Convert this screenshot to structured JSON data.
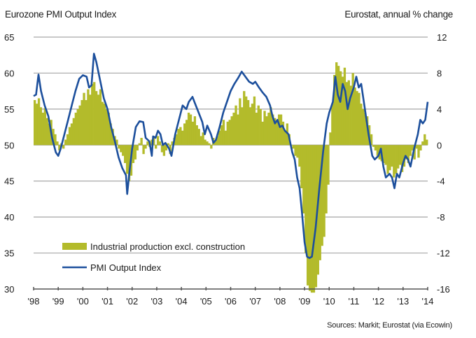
{
  "chart_data": {
    "type": "bar+line",
    "title_left": "Eurozone PMI Output Index",
    "title_right": "Eurostat, annual % change",
    "source": "Sources: Markit; Eurostat (via Ecowin)",
    "x_tick_labels": [
      "'98",
      "'99",
      "'00",
      "'01",
      "'02",
      "'03",
      "'04",
      "'05",
      "'06",
      "'07",
      "'08",
      "'09",
      "'10",
      "'11",
      "'12",
      "'13",
      "'14"
    ],
    "x_range": [
      1998,
      2014
    ],
    "left_axis": {
      "label": "Eurozone PMI Output Index",
      "ylim": [
        30,
        65
      ],
      "ticks": [
        65,
        60,
        55,
        50,
        45,
        40,
        35,
        30
      ]
    },
    "right_axis": {
      "label": "Eurostat, annual % change",
      "ylim": [
        -16,
        12
      ],
      "ticks": [
        12,
        8,
        4,
        0,
        -4,
        -8,
        -12,
        -16
      ]
    },
    "grid": true,
    "legend": {
      "placement": "bottom-left",
      "entries": [
        "Industrial production excl. construction",
        "PMI Output Index"
      ]
    },
    "colors": {
      "bars": "#b3bb2b",
      "line": "#1c4f9c",
      "grid": "#a6a6a6"
    },
    "series": [
      {
        "name": "Industrial production excl. construction",
        "axis": "right",
        "kind": "bar",
        "x": [
          1998.0,
          1998.083,
          1998.167,
          1998.25,
          1998.333,
          1998.417,
          1998.5,
          1998.583,
          1998.667,
          1998.75,
          1998.833,
          1998.917,
          1999.0,
          1999.083,
          1999.167,
          1999.25,
          1999.333,
          1999.417,
          1999.5,
          1999.583,
          1999.667,
          1999.75,
          1999.833,
          1999.917,
          2000.0,
          2000.083,
          2000.167,
          2000.25,
          2000.333,
          2000.417,
          2000.5,
          2000.583,
          2000.667,
          2000.75,
          2000.833,
          2000.917,
          2001.0,
          2001.083,
          2001.167,
          2001.25,
          2001.333,
          2001.417,
          2001.5,
          2001.583,
          2001.667,
          2001.75,
          2001.833,
          2001.917,
          2002.0,
          2002.083,
          2002.167,
          2002.25,
          2002.333,
          2002.417,
          2002.5,
          2002.583,
          2002.667,
          2002.75,
          2002.833,
          2002.917,
          2003.0,
          2003.083,
          2003.167,
          2003.25,
          2003.333,
          2003.417,
          2003.5,
          2003.583,
          2003.667,
          2003.75,
          2003.833,
          2003.917,
          2004.0,
          2004.083,
          2004.167,
          2004.25,
          2004.333,
          2004.417,
          2004.5,
          2004.583,
          2004.667,
          2004.75,
          2004.833,
          2004.917,
          2005.0,
          2005.083,
          2005.167,
          2005.25,
          2005.333,
          2005.417,
          2005.5,
          2005.583,
          2005.667,
          2005.75,
          2005.833,
          2005.917,
          2006.0,
          2006.083,
          2006.167,
          2006.25,
          2006.333,
          2006.417,
          2006.5,
          2006.583,
          2006.667,
          2006.75,
          2006.833,
          2006.917,
          2007.0,
          2007.083,
          2007.167,
          2007.25,
          2007.333,
          2007.417,
          2007.5,
          2007.583,
          2007.667,
          2007.75,
          2007.833,
          2007.917,
          2008.0,
          2008.083,
          2008.167,
          2008.25,
          2008.333,
          2008.417,
          2008.5,
          2008.583,
          2008.667,
          2008.75,
          2008.833,
          2008.917,
          2009.0,
          2009.083,
          2009.167,
          2009.25,
          2009.333,
          2009.417,
          2009.5,
          2009.583,
          2009.667,
          2009.75,
          2009.833,
          2009.917,
          2010.0,
          2010.083,
          2010.167,
          2010.25,
          2010.333,
          2010.417,
          2010.5,
          2010.583,
          2010.667,
          2010.75,
          2010.833,
          2010.917,
          2011.0,
          2011.083,
          2011.167,
          2011.25,
          2011.333,
          2011.417,
          2011.5,
          2011.583,
          2011.667,
          2011.75,
          2011.833,
          2011.917,
          2012.0,
          2012.083,
          2012.167,
          2012.25,
          2012.333,
          2012.417,
          2012.5,
          2012.583,
          2012.667,
          2012.75,
          2012.833,
          2012.917,
          2013.0,
          2013.083,
          2013.167,
          2013.25,
          2013.333,
          2013.417,
          2013.5,
          2013.583,
          2013.667,
          2013.75,
          2013.833,
          2013.917
        ],
        "values": [
          5.0,
          4.6,
          5.2,
          4.2,
          3.6,
          4.1,
          3.0,
          2.4,
          2.8,
          1.8,
          1.2,
          0.4,
          -0.6,
          0.2,
          -0.4,
          0.6,
          1.2,
          2.0,
          2.4,
          3.0,
          3.6,
          4.0,
          4.4,
          5.0,
          5.8,
          5.0,
          6.2,
          5.6,
          6.8,
          7.0,
          6.0,
          5.6,
          6.2,
          4.8,
          4.6,
          4.0,
          3.6,
          2.4,
          1.8,
          1.0,
          0.6,
          -0.4,
          -0.8,
          -1.2,
          -2.0,
          -3.2,
          -4.0,
          -3.4,
          -2.0,
          -1.6,
          -0.6,
          0.2,
          0.8,
          -1.0,
          -0.4,
          0.4,
          -0.2,
          0.6,
          1.0,
          -0.4,
          1.0,
          0.4,
          -0.8,
          -1.2,
          -0.6,
          0.2,
          -1.0,
          0.4,
          0.8,
          1.2,
          1.8,
          2.0,
          1.6,
          2.4,
          2.8,
          3.6,
          3.4,
          2.6,
          3.2,
          2.2,
          1.8,
          1.0,
          1.4,
          0.6,
          0.4,
          0.2,
          -0.4,
          0.8,
          0.4,
          1.0,
          1.6,
          2.2,
          2.8,
          1.6,
          2.6,
          2.8,
          3.2,
          3.6,
          4.4,
          3.4,
          5.2,
          4.2,
          6.0,
          5.4,
          5.0,
          4.2,
          4.6,
          5.4,
          3.6,
          4.4,
          4.0,
          2.6,
          3.8,
          3.2,
          3.6,
          4.2,
          3.4,
          3.0,
          2.6,
          3.4,
          3.4,
          2.6,
          1.6,
          2.4,
          1.2,
          0.0,
          -0.4,
          -1.2,
          -1.4,
          -2.4,
          -4.8,
          -7.6,
          -12.0,
          -15.6,
          -16.2,
          -16.4,
          -16.4,
          -15.8,
          -14.4,
          -12.8,
          -11.2,
          -10.2,
          -7.6,
          -4.4,
          1.4,
          4.6,
          7.8,
          9.2,
          8.8,
          8.2,
          7.6,
          8.6,
          7.0,
          7.2,
          6.6,
          8.0,
          6.4,
          6.0,
          5.8,
          4.6,
          4.0,
          3.6,
          3.2,
          2.2,
          1.2,
          -0.2,
          -0.6,
          -1.2,
          -1.6,
          -1.8,
          -2.0,
          -2.2,
          -3.2,
          -2.8,
          -2.4,
          -3.6,
          -3.2,
          -2.6,
          -2.2,
          -3.0,
          -2.4,
          -1.6,
          -2.0,
          -1.2,
          -0.6,
          -1.6,
          -0.4,
          -1.4,
          -0.6,
          0.4,
          1.2,
          0.6
        ]
      },
      {
        "name": "PMI Output Index",
        "axis": "left",
        "kind": "line",
        "x": [
          1998.0,
          1998.1,
          1998.2,
          1998.3,
          1998.45,
          1998.6,
          1998.75,
          1998.9,
          1999.0,
          1999.1,
          1999.25,
          1999.4,
          1999.55,
          1999.7,
          1999.85,
          2000.0,
          2000.15,
          2000.25,
          2000.35,
          2000.45,
          2000.55,
          2000.7,
          2000.85,
          2001.0,
          2001.15,
          2001.3,
          2001.45,
          2001.6,
          2001.75,
          2001.8,
          2001.9,
          2002.0,
          2002.15,
          2002.3,
          2002.45,
          2002.55,
          2002.7,
          2002.8,
          2002.85,
          2002.95,
          2003.05,
          2003.15,
          2003.25,
          2003.35,
          2003.5,
          2003.6,
          2003.75,
          2003.9,
          2004.05,
          2004.2,
          2004.3,
          2004.45,
          2004.55,
          2004.7,
          2004.85,
          2004.95,
          2005.05,
          2005.2,
          2005.3,
          2005.4,
          2005.55,
          2005.7,
          2005.85,
          2006.0,
          2006.15,
          2006.3,
          2006.45,
          2006.6,
          2006.75,
          2006.9,
          2007.0,
          2007.15,
          2007.3,
          2007.45,
          2007.6,
          2007.7,
          2007.8,
          2007.9,
          2008.0,
          2008.1,
          2008.2,
          2008.35,
          2008.5,
          2008.6,
          2008.7,
          2008.8,
          2008.9,
          2009.0,
          2009.1,
          2009.2,
          2009.3,
          2009.45,
          2009.6,
          2009.75,
          2009.9,
          2010.0,
          2010.15,
          2010.25,
          2010.35,
          2010.45,
          2010.55,
          2010.65,
          2010.75,
          2010.85,
          2011.0,
          2011.1,
          2011.2,
          2011.3,
          2011.45,
          2011.6,
          2011.75,
          2011.85,
          2012.0,
          2012.1,
          2012.2,
          2012.3,
          2012.45,
          2012.55,
          2012.65,
          2012.75,
          2012.85,
          2013.0,
          2013.1,
          2013.2,
          2013.3,
          2013.45,
          2013.6,
          2013.7,
          2013.8,
          2013.9,
          2014.0
        ],
        "values": [
          56.8,
          57.0,
          59.8,
          57.5,
          55.5,
          54.0,
          51.0,
          49.0,
          48.5,
          49.5,
          51.5,
          53.5,
          55.5,
          57.5,
          59.2,
          59.7,
          59.5,
          58.0,
          58.3,
          62.7,
          61.5,
          59.0,
          56.5,
          55.0,
          52.5,
          50.5,
          48.3,
          46.8,
          45.8,
          43.2,
          46.5,
          49.5,
          52.5,
          53.3,
          53.2,
          51.0,
          50.5,
          48.5,
          51.2,
          51.0,
          52.0,
          51.5,
          50.0,
          50.3,
          49.5,
          48.5,
          51.5,
          53.5,
          55.5,
          55.0,
          56.0,
          56.7,
          55.8,
          54.5,
          53.2,
          51.5,
          52.7,
          51.5,
          50.3,
          50.7,
          52.5,
          54.5,
          56.0,
          57.5,
          58.5,
          59.3,
          60.2,
          59.5,
          58.8,
          58.5,
          58.8,
          58.0,
          57.3,
          56.7,
          55.5,
          54.0,
          53.0,
          53.5,
          52.5,
          52.7,
          52.0,
          51.5,
          49.0,
          48.0,
          45.5,
          44.0,
          40.5,
          36.5,
          34.5,
          34.3,
          34.5,
          38.5,
          44.0,
          49.0,
          53.0,
          54.5,
          56.0,
          59.5,
          57.0,
          56.0,
          58.5,
          57.5,
          55.0,
          56.5,
          58.0,
          59.5,
          58.0,
          58.5,
          55.0,
          51.5,
          48.5,
          48.0,
          48.5,
          49.5,
          47.0,
          45.5,
          46.0,
          45.5,
          44.0,
          46.0,
          45.5,
          47.5,
          48.5,
          48.0,
          47.0,
          49.5,
          51.5,
          53.5,
          53.0,
          53.5,
          56.0
        ]
      }
    ]
  }
}
